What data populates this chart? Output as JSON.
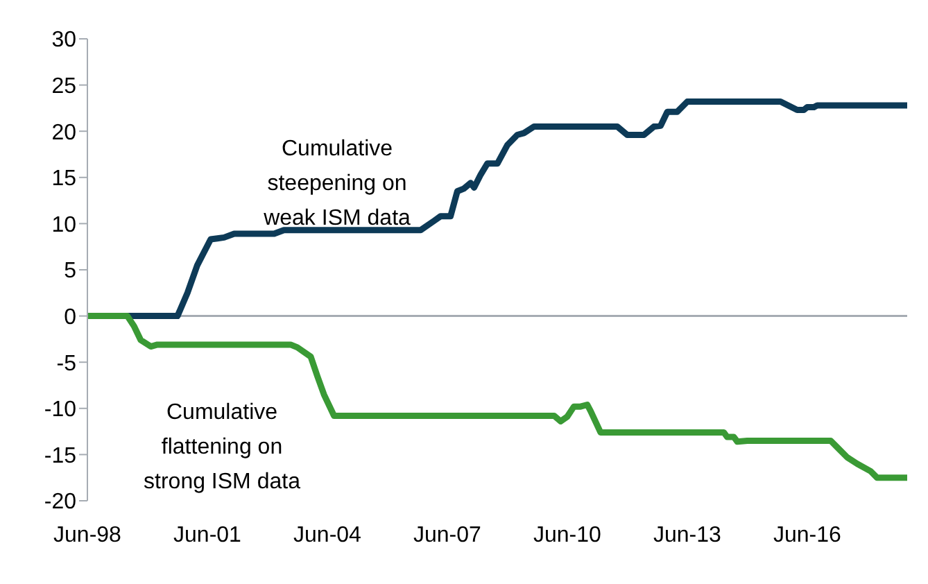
{
  "chart_data": {
    "type": "line",
    "annotations": [
      "Cumulative steepening on weak ISM data",
      "Cumulative flattening on strong ISM data"
    ],
    "xlim": [
      "1998-06",
      "2018-12"
    ],
    "xticks": [
      {
        "value": "1998-06",
        "label": "Jun-98"
      },
      {
        "value": "2001-06",
        "label": "Jun-01"
      },
      {
        "value": "2004-06",
        "label": "Jun-04"
      },
      {
        "value": "2007-06",
        "label": "Jun-07"
      },
      {
        "value": "2010-06",
        "label": "Jun-10"
      },
      {
        "value": "2013-06",
        "label": "Jun-13"
      },
      {
        "value": "2016-06",
        "label": "Jun-16"
      }
    ],
    "ylim": [
      -20,
      30
    ],
    "yticks": [
      -20,
      -15,
      -10,
      -5,
      0,
      5,
      10,
      15,
      20,
      25,
      30
    ],
    "marker": "none",
    "line_style": "solid",
    "ref_lines": [
      {
        "axis": "y",
        "value": 0,
        "color": "#a6acb3"
      }
    ],
    "series": [
      {
        "color": "#0d3a57",
        "x": [
          "1998-06",
          "2000-09",
          "2000-12",
          "2001-03",
          "2001-07",
          "2001-09",
          "2001-11",
          "2002-02",
          "2003-02",
          "2003-05",
          "2006-10",
          "2007-02",
          "2007-04",
          "2007-07",
          "2007-09",
          "2007-11",
          "2008-01",
          "2008-02",
          "2008-04",
          "2008-06",
          "2008-09",
          "2008-12",
          "2009-03",
          "2009-05",
          "2009-08",
          "2011-09",
          "2011-12",
          "2012-05",
          "2012-08",
          "2012-10",
          "2012-12",
          "2013-03",
          "2013-06",
          "2015-10",
          "2016-03",
          "2016-05",
          "2016-06",
          "2016-08",
          "2016-09",
          "2018-12"
        ],
        "values": [
          0,
          0,
          2.5,
          5.5,
          8.3,
          8.4,
          8.5,
          8.9,
          8.9,
          9.3,
          9.3,
          10.3,
          10.8,
          10.8,
          13.5,
          13.8,
          14.4,
          13.9,
          15.3,
          16.5,
          16.5,
          18.5,
          19.6,
          19.8,
          20.5,
          20.5,
          19.6,
          19.6,
          20.5,
          20.6,
          22.1,
          22.1,
          23.2,
          23.2,
          22.3,
          22.3,
          22.6,
          22.6,
          22.8,
          22.8
        ]
      },
      {
        "color": "#3a9a35",
        "x": [
          "1998-06",
          "1999-06",
          "1999-08",
          "1999-10",
          "2000-01",
          "2000-03",
          "2003-07",
          "2003-09",
          "2004-01",
          "2004-03",
          "2004-05",
          "2004-08",
          "2010-02",
          "2010-04",
          "2010-06",
          "2010-08",
          "2010-10",
          "2010-12",
          "2011-01",
          "2011-04",
          "2014-05",
          "2014-06",
          "2014-08",
          "2014-09",
          "2014-12",
          "2017-01",
          "2017-03",
          "2017-06",
          "2017-09",
          "2018-01",
          "2018-03",
          "2018-12"
        ],
        "values": [
          0,
          0,
          -1.1,
          -2.6,
          -3.3,
          -3.1,
          -3.1,
          -3.4,
          -4.4,
          -6.5,
          -8.5,
          -10.8,
          -10.8,
          -11.4,
          -10.9,
          -9.8,
          -9.8,
          -9.6,
          -10.3,
          -12.6,
          -12.6,
          -13.1,
          -13.1,
          -13.6,
          -13.5,
          -13.5,
          -14.2,
          -15.3,
          -16.0,
          -16.8,
          -17.5,
          -17.5
        ]
      }
    ]
  }
}
